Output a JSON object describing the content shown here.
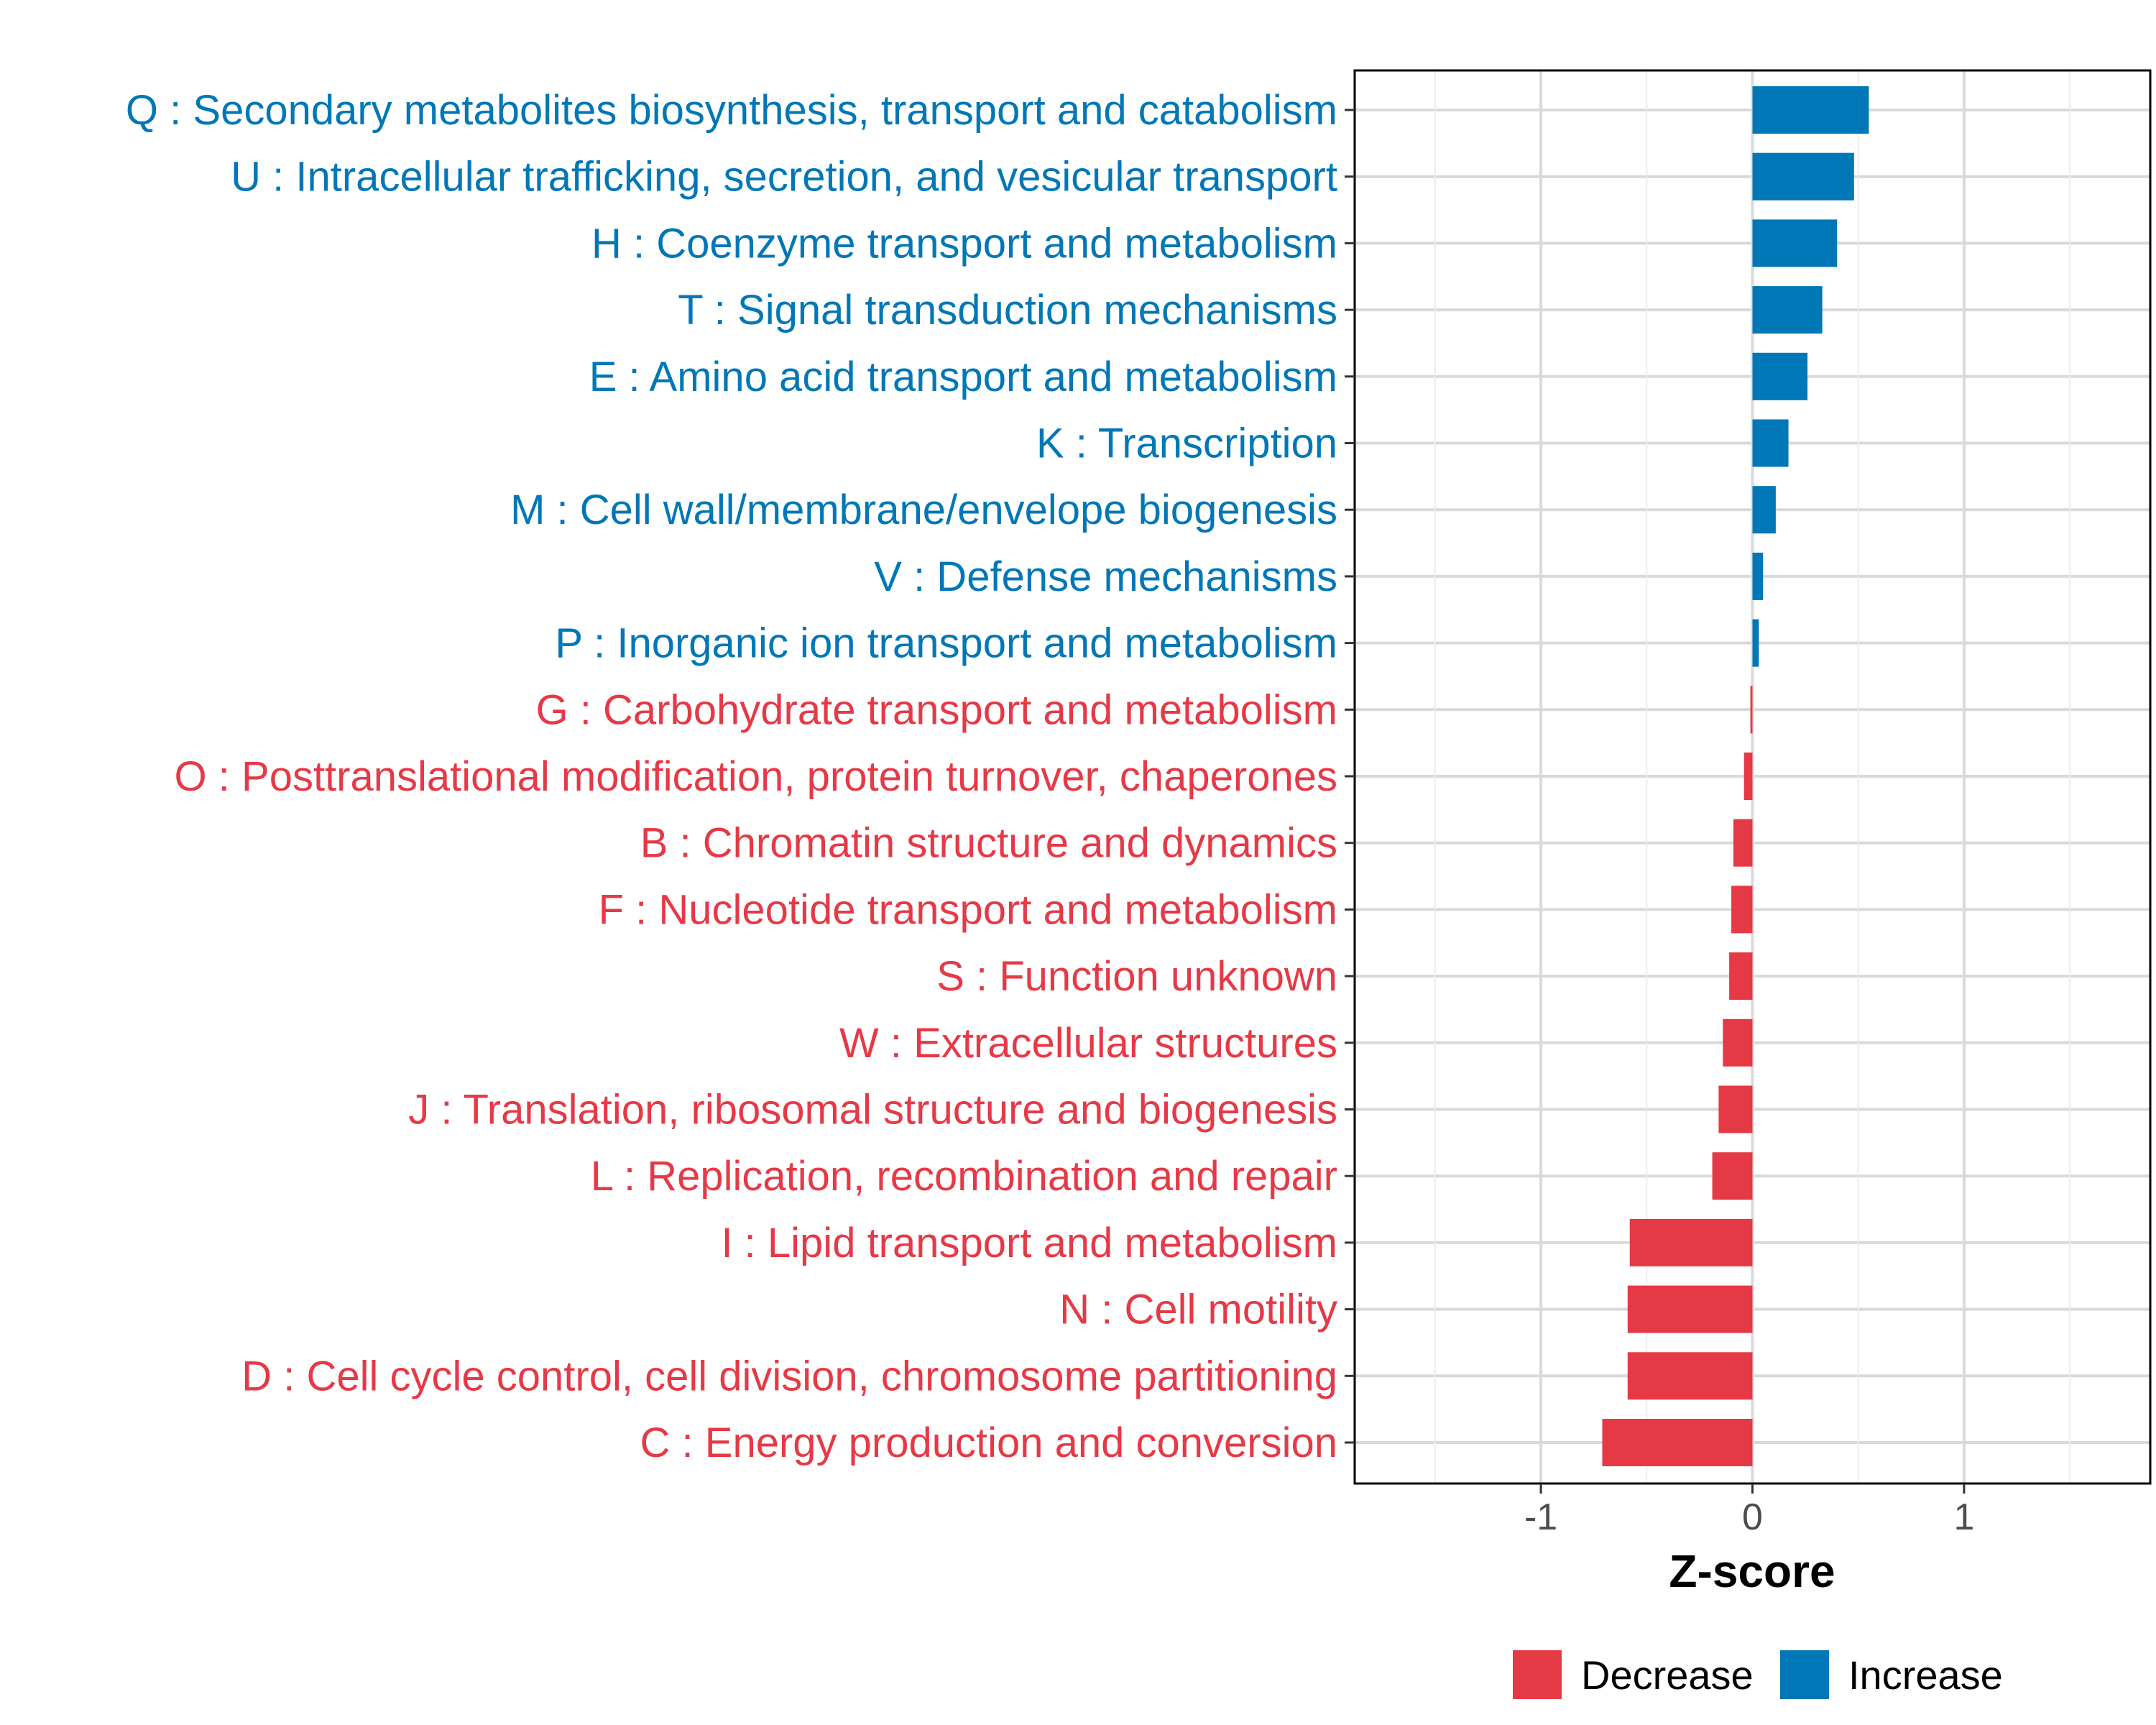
{
  "chart_data": {
    "type": "bar",
    "orientation": "horizontal",
    "title": "",
    "xlabel": "Z-score",
    "ylabel": "",
    "xlim": [
      -1.88,
      1.88
    ],
    "xticks": [
      -1,
      0,
      1
    ],
    "xtick_labels": [
      "-1",
      "0",
      "1"
    ],
    "grid": true,
    "categories": [
      "Q : Secondary metabolites biosynthesis, transport and catabolism",
      "U : Intracellular trafficking, secretion, and vesicular transport",
      "H : Coenzyme transport and metabolism",
      "T : Signal transduction mechanisms",
      "E : Amino acid transport and metabolism",
      "K : Transcription",
      "M : Cell wall/membrane/envelope biogenesis",
      "V : Defense mechanisms",
      "P : Inorganic ion transport and metabolism",
      "G : Carbohydrate transport and metabolism",
      "O : Posttranslational modification, protein turnover, chaperones",
      "B : Chromatin structure and dynamics",
      "F : Nucleotide transport and metabolism",
      "S : Function unknown",
      "W : Extracellular structures",
      "J : Translation, ribosomal structure and biogenesis",
      "L : Replication, recombination and repair",
      "I : Lipid transport and metabolism",
      "N : Cell motility",
      "D : Cell cycle control, cell division, chromosome partitioning",
      "C : Energy production and conversion"
    ],
    "values": [
      0.55,
      0.48,
      0.4,
      0.33,
      0.26,
      0.17,
      0.11,
      0.05,
      0.03,
      -0.01,
      -0.04,
      -0.09,
      -0.1,
      -0.11,
      -0.14,
      -0.16,
      -0.19,
      -0.58,
      -0.59,
      -0.59,
      -0.71
    ],
    "legend": {
      "position": "bottom",
      "entries": [
        {
          "name": "Decrease",
          "color": "#e63946"
        },
        {
          "name": "Increase",
          "color": "#0077b6"
        }
      ]
    },
    "colors": {
      "increase": "#0077b6",
      "decrease": "#e63946",
      "grid": "#d9d9d9",
      "frame": "#000000"
    }
  }
}
